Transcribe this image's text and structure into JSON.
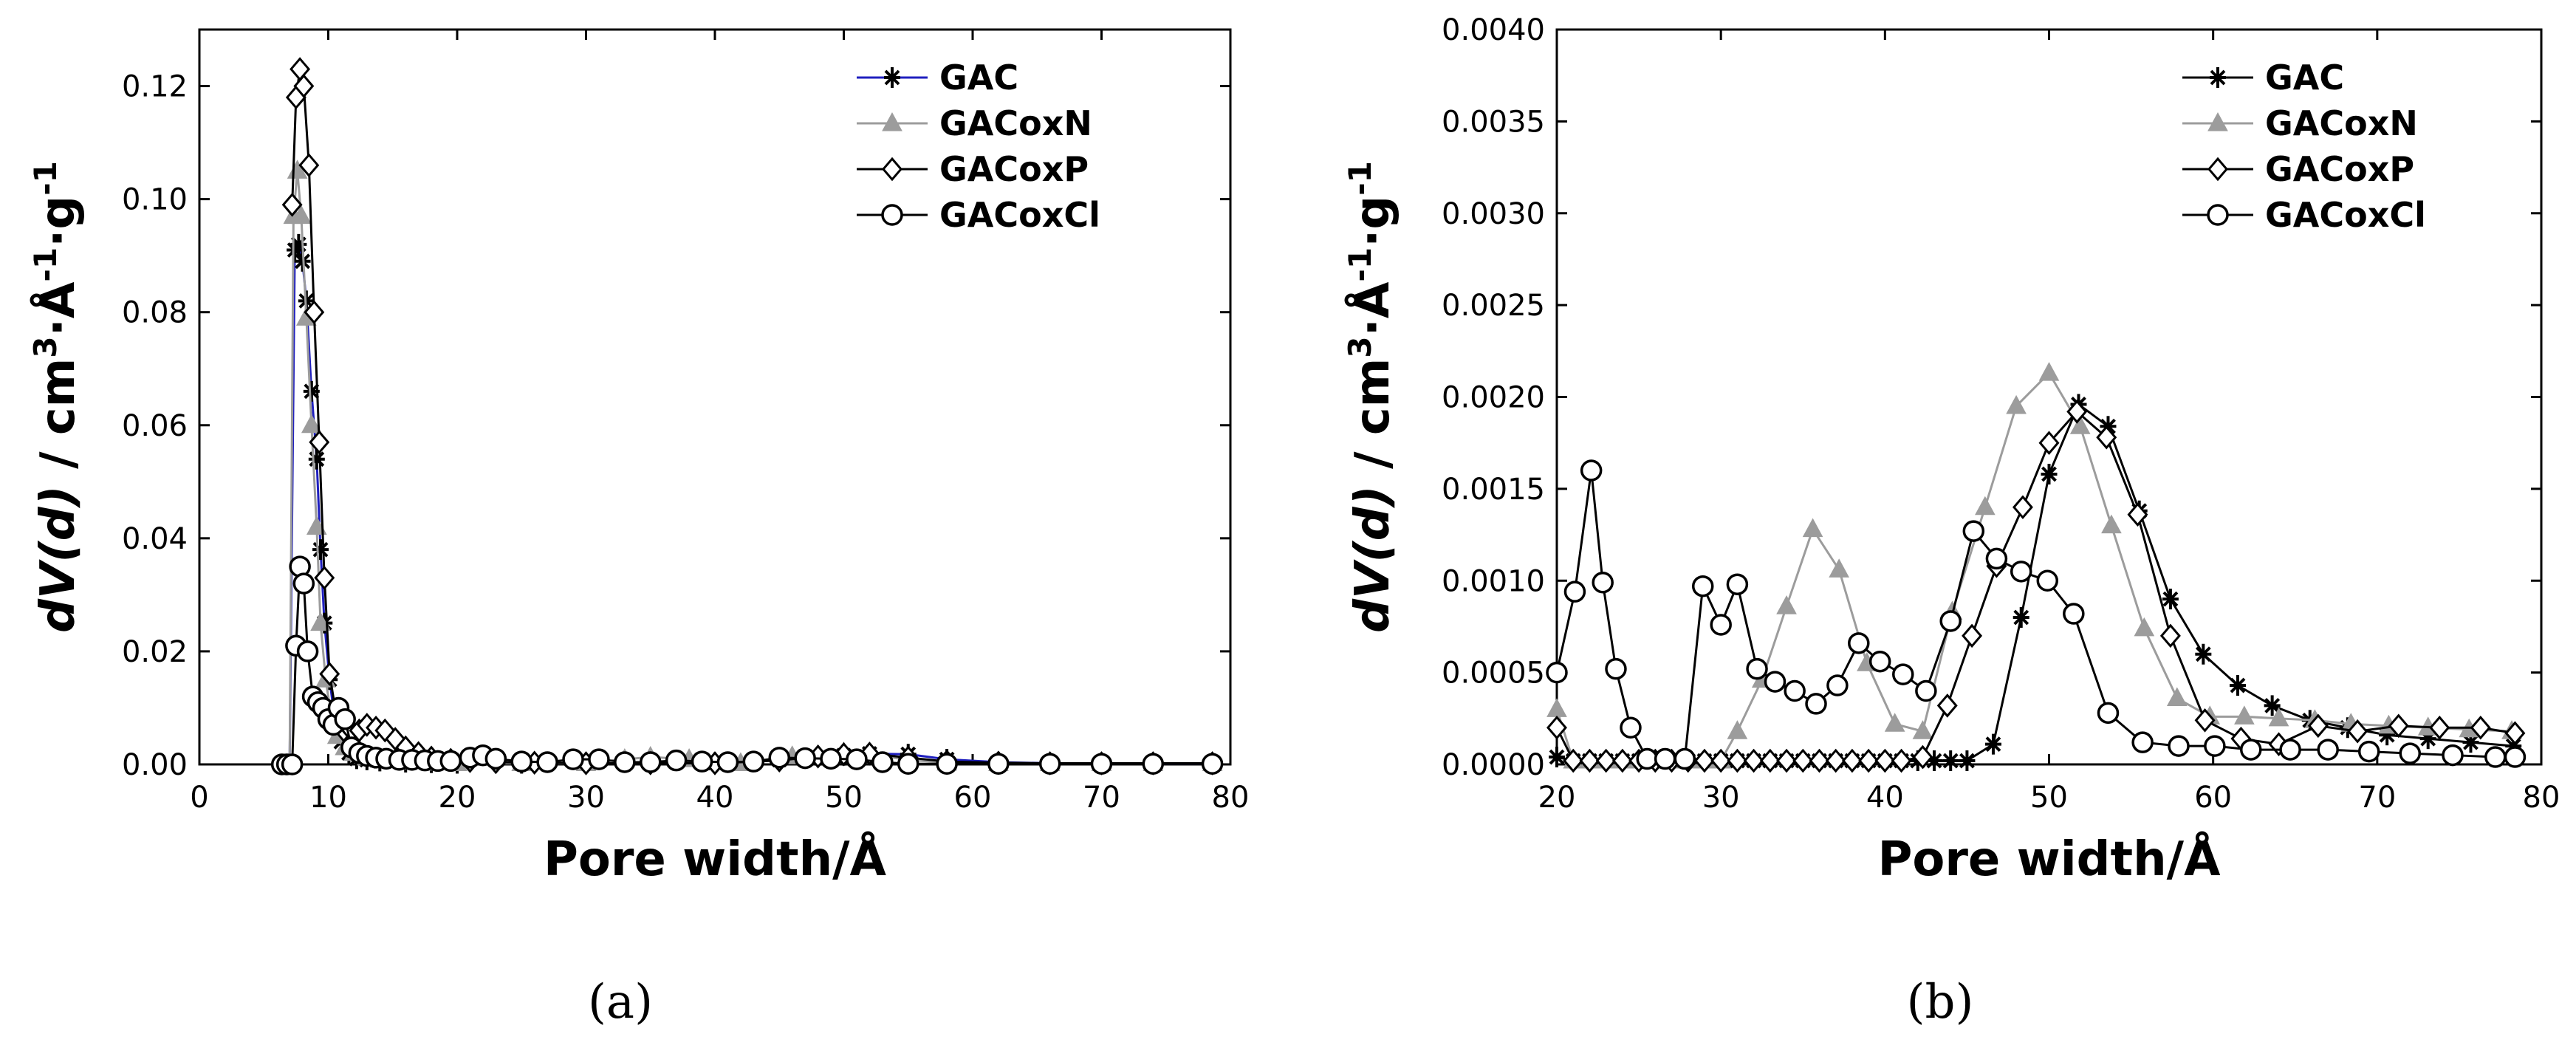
{
  "colors": {
    "GAC": "#000000",
    "GAC_line_a": "#1f1fbf",
    "GACoxN": "#9c9c9c",
    "GACoxP": "#000000",
    "GACoxCl": "#000000"
  },
  "captions": {
    "a": "(a)",
    "b": "(b)"
  },
  "chart_data": [
    {
      "id": "a",
      "type": "scatter",
      "xlabel": "Pore width/Å",
      "ylabel_parts": [
        "dV(d)",
        " / cm",
        "3",
        "·Å",
        "-1",
        "·g",
        "-1"
      ],
      "xlim": [
        0,
        80
      ],
      "ylim": [
        0,
        0.13
      ],
      "xticks": [
        0,
        10,
        20,
        30,
        40,
        50,
        60,
        70,
        80
      ],
      "yticks": [
        0.0,
        0.02,
        0.04,
        0.06,
        0.08,
        0.1,
        0.12
      ],
      "ytick_labels": [
        "0.00",
        "0.02",
        "0.04",
        "0.06",
        "0.08",
        "0.10",
        "0.12"
      ],
      "legend": {
        "position": "top-right",
        "entries": [
          "GAC",
          "GACoxN",
          "GACoxP",
          "GACoxCl"
        ]
      },
      "series": [
        {
          "name": "GAC",
          "marker": "asterisk",
          "x": [
            6.6,
            7.0,
            7.4,
            7.7,
            8.0,
            8.3,
            8.7,
            9.1,
            9.4,
            9.7,
            10.1,
            10.5,
            11.0,
            11.6,
            12.2,
            13.0,
            14.0,
            16,
            18,
            20,
            25,
            30,
            35,
            40,
            45,
            50,
            52,
            55,
            58,
            62,
            66,
            70,
            74,
            78.6
          ],
          "y": [
            0.0,
            0.0,
            0.091,
            0.092,
            0.089,
            0.082,
            0.066,
            0.054,
            0.038,
            0.025,
            0.015,
            0.008,
            0.004,
            0.002,
            0.001,
            0.0008,
            0.0006,
            0.0004,
            0.0003,
            0.0002,
            0.0002,
            0.0002,
            0.0002,
            0.0003,
            0.0008,
            0.0016,
            0.0019,
            0.0018,
            0.0009,
            0.0004,
            0.0002,
            0.0002,
            0.0001,
            0.0001
          ]
        },
        {
          "name": "GACoxN",
          "marker": "triangle",
          "x": [
            6.6,
            7.0,
            7.3,
            7.6,
            7.9,
            8.3,
            8.7,
            9.1,
            9.4,
            9.8,
            10.2,
            10.7,
            11.3,
            12.0,
            13.0,
            14.0,
            16,
            18,
            20,
            25,
            30,
            33,
            35,
            38,
            42,
            46,
            50,
            52,
            55,
            58,
            62,
            66,
            70,
            74,
            78.6
          ],
          "y": [
            0.0,
            0.0,
            0.097,
            0.105,
            0.097,
            0.079,
            0.06,
            0.042,
            0.025,
            0.015,
            0.009,
            0.005,
            0.003,
            0.002,
            0.0012,
            0.0008,
            0.0005,
            0.0003,
            0.0002,
            0.0002,
            0.0002,
            0.0009,
            0.0013,
            0.0009,
            0.0002,
            0.0014,
            0.0021,
            0.0018,
            0.0008,
            0.0003,
            0.0002,
            0.0002,
            0.0002,
            0.0002,
            0.0002
          ]
        },
        {
          "name": "GACoxP",
          "marker": "diamond",
          "x": [
            7.2,
            7.5,
            7.8,
            8.1,
            8.5,
            8.9,
            9.3,
            9.7,
            10.1,
            10.6,
            11.2,
            11.8,
            12.4,
            13.0,
            13.7,
            14.4,
            15.2,
            16.0,
            17.0,
            18.0,
            19.5,
            21,
            23,
            26,
            30,
            35,
            40,
            45,
            48,
            50,
            52,
            55,
            58,
            62,
            66,
            70,
            74,
            78.6
          ],
          "y": [
            0.099,
            0.118,
            0.123,
            0.12,
            0.106,
            0.08,
            0.057,
            0.033,
            0.016,
            0.009,
            0.006,
            0.006,
            0.006,
            0.007,
            0.0065,
            0.006,
            0.0045,
            0.003,
            0.002,
            0.0012,
            0.0008,
            0.0006,
            0.0004,
            0.0003,
            0.0002,
            0.0002,
            0.0002,
            0.0007,
            0.0014,
            0.0018,
            0.0019,
            0.0012,
            0.0005,
            0.0003,
            0.0002,
            0.0002,
            0.0002,
            0.0002
          ]
        },
        {
          "name": "GACoxCl",
          "marker": "circle",
          "x": [
            6.4,
            6.8,
            7.2,
            7.5,
            7.8,
            8.1,
            8.4,
            8.8,
            9.2,
            9.6,
            10.0,
            10.4,
            10.8,
            11.3,
            11.8,
            12.4,
            13.0,
            13.7,
            14.5,
            15.5,
            16.5,
            17.5,
            18.5,
            19.5,
            21,
            22,
            23,
            25,
            27,
            29,
            31,
            33,
            35,
            37,
            39,
            41,
            43,
            45,
            47,
            49,
            51,
            53,
            55,
            58,
            62,
            66,
            70,
            74,
            78.6
          ],
          "y": [
            0.0,
            0.0,
            0.0,
            0.021,
            0.035,
            0.032,
            0.02,
            0.012,
            0.011,
            0.01,
            0.008,
            0.007,
            0.01,
            0.008,
            0.003,
            0.002,
            0.0015,
            0.0012,
            0.001,
            0.0008,
            0.0008,
            0.0007,
            0.0006,
            0.0006,
            0.0012,
            0.0016,
            0.001,
            0.0005,
            0.0004,
            0.0009,
            0.0009,
            0.0004,
            0.0004,
            0.0007,
            0.0005,
            0.0004,
            0.0005,
            0.0012,
            0.0011,
            0.001,
            0.0009,
            0.0004,
            0.0001,
            0.0001,
            0.0001,
            0.0001,
            0.0001,
            0.0001,
            0.0001
          ]
        }
      ]
    },
    {
      "id": "b",
      "type": "line",
      "xlabel": "Pore width/Å",
      "ylabel_parts": [
        "dV(d)",
        " / cm",
        "3",
        "·Å",
        "-1",
        "·g",
        "-1"
      ],
      "xlim": [
        20,
        80
      ],
      "ylim": [
        0,
        0.004
      ],
      "xticks": [
        20,
        30,
        40,
        50,
        60,
        70,
        80
      ],
      "yticks": [
        0.0,
        0.0005,
        0.001,
        0.0015,
        0.002,
        0.0025,
        0.003,
        0.0035,
        0.004
      ],
      "ytick_labels": [
        "0.0000",
        "0.0005",
        "0.0010",
        "0.0015",
        "0.0020",
        "0.0025",
        "0.0030",
        "0.0035",
        "0.0040"
      ],
      "legend": {
        "position": "top-right",
        "entries": [
          "GAC",
          "GACoxN",
          "GACoxP",
          "GACoxCl"
        ]
      },
      "series": [
        {
          "name": "GAC",
          "marker": "asterisk",
          "x": [
            20.0,
            21.0,
            22.0,
            23.0,
            24.0,
            25.0,
            26.0,
            27.0,
            28.0,
            29.0,
            30.0,
            31.0,
            32.0,
            33.0,
            34.0,
            35.0,
            36.0,
            37.0,
            38.0,
            39.0,
            40.0,
            41.0,
            42.0,
            43.0,
            44.0,
            45.0,
            46.6,
            48.3,
            50.0,
            51.8,
            53.6,
            55.5,
            57.4,
            59.4,
            61.5,
            63.6,
            65.9,
            68.2,
            70.6,
            73.1,
            75.7,
            78.3
          ],
          "y": [
            4e-05,
            2e-05,
            2e-05,
            2e-05,
            2e-05,
            2e-05,
            2e-05,
            2e-05,
            2e-05,
            2e-05,
            2e-05,
            2e-05,
            2e-05,
            2e-05,
            2e-05,
            2e-05,
            2e-05,
            2e-05,
            2e-05,
            2e-05,
            2e-05,
            2e-05,
            2e-05,
            2e-05,
            2e-05,
            2e-05,
            0.00011,
            0.0008,
            0.00158,
            0.00196,
            0.00184,
            0.00138,
            0.0009,
            0.0006,
            0.00043,
            0.00032,
            0.00024,
            0.0002,
            0.00016,
            0.00014,
            0.00012,
            0.0001
          ]
        },
        {
          "name": "GACoxN",
          "marker": "triangle",
          "x": [
            20.0,
            21.0,
            22.0,
            23.0,
            24.0,
            25.0,
            26.0,
            27.0,
            28.0,
            29.0,
            30.0,
            31.0,
            32.5,
            34.0,
            35.6,
            37.2,
            38.9,
            40.6,
            42.3,
            44.1,
            46.1,
            48.0,
            50.0,
            51.9,
            53.8,
            55.8,
            57.8,
            59.8,
            61.9,
            64.0,
            66.2,
            68.4,
            70.7,
            73.1,
            75.6,
            78.2
          ],
          "y": [
            0.0003,
            2e-05,
            2e-05,
            2e-05,
            2e-05,
            2e-05,
            2e-05,
            2e-05,
            2e-05,
            2e-05,
            2e-05,
            0.00018,
            0.00046,
            0.00086,
            0.00128,
            0.00106,
            0.00055,
            0.00022,
            0.00018,
            0.00083,
            0.0014,
            0.00195,
            0.00213,
            0.00184,
            0.0013,
            0.00074,
            0.00036,
            0.00026,
            0.00026,
            0.00025,
            0.00024,
            0.00022,
            0.00021,
            0.0002,
            0.00019,
            0.00018
          ]
        },
        {
          "name": "GACoxP",
          "marker": "diamond",
          "x": [
            20.0,
            21.0,
            22.0,
            23.0,
            24.0,
            25.0,
            26.0,
            27.0,
            28.0,
            29.0,
            30.0,
            31.0,
            32.0,
            33.0,
            34.0,
            35.0,
            36.0,
            37.0,
            38.0,
            39.0,
            40.0,
            41.0,
            42.3,
            43.8,
            45.3,
            46.8,
            48.4,
            50.0,
            51.7,
            53.5,
            55.4,
            57.4,
            59.5,
            61.7,
            64.0,
            66.4,
            68.8,
            71.3,
            73.8,
            76.3,
            78.4
          ],
          "y": [
            0.0002,
            2e-05,
            2e-05,
            2e-05,
            2e-05,
            2e-05,
            2e-05,
            2e-05,
            2e-05,
            2e-05,
            2e-05,
            2e-05,
            2e-05,
            2e-05,
            2e-05,
            2e-05,
            2e-05,
            2e-05,
            2e-05,
            2e-05,
            2e-05,
            2e-05,
            4e-05,
            0.00032,
            0.0007,
            0.00108,
            0.0014,
            0.00175,
            0.00192,
            0.00178,
            0.00136,
            0.0007,
            0.00024,
            0.00014,
            0.00011,
            0.00021,
            0.00018,
            0.00021,
            0.0002,
            0.0002,
            0.00017
          ]
        },
        {
          "name": "GACoxCl",
          "marker": "circle",
          "x": [
            20.0,
            21.1,
            22.1,
            22.8,
            23.6,
            24.5,
            25.5,
            26.6,
            27.8,
            28.9,
            30.0,
            31.0,
            32.2,
            33.3,
            34.5,
            35.8,
            37.1,
            38.4,
            39.7,
            41.1,
            42.5,
            44.0,
            45.4,
            46.8,
            48.3,
            49.9,
            51.5,
            53.6,
            55.7,
            57.9,
            60.1,
            62.3,
            64.7,
            67.0,
            69.5,
            72.0,
            74.6,
            77.2,
            78.4
          ],
          "y": [
            0.0005,
            0.00094,
            0.0016,
            0.00099,
            0.00052,
            0.0002,
            3e-05,
            3e-05,
            3e-05,
            0.00097,
            0.00076,
            0.00098,
            0.00052,
            0.00045,
            0.0004,
            0.00033,
            0.00043,
            0.00066,
            0.00056,
            0.00049,
            0.0004,
            0.00078,
            0.00127,
            0.00112,
            0.00105,
            0.001,
            0.00082,
            0.00028,
            0.00012,
            0.0001,
            0.0001,
            8e-05,
            8e-05,
            8e-05,
            7e-05,
            6e-05,
            5e-05,
            4e-05,
            4e-05
          ]
        }
      ]
    }
  ]
}
